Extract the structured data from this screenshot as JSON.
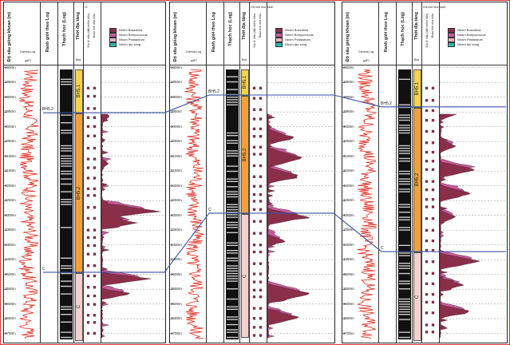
{
  "headers": {
    "depth": "Độ sâu giếng khoan (m)",
    "log_boundary": "Ranh giới theo Log",
    "lithology": "Thạch học (Log)",
    "age": "Thời địa tầng",
    "gamma": "Gamma Log",
    "gamma_unit": "gAPI",
    "notes_small": "Cf",
    "notes_row1": "Giá trị mẫu (đất nhiễm bẩn)",
    "notes_row2": "Đoạn tính như mẫu",
    "bed": "Bed",
    "panel3_small": "Ghi chú hóa thạch"
  },
  "legend": [
    {
      "label": "Nhóm Bosedinia",
      "color": "#8b2e4a"
    },
    {
      "label": "Nhóm Botryococcus",
      "color": "#c45b9a"
    },
    {
      "label": "Nhóm Pediastrum",
      "color": "#e8b0c0"
    },
    {
      "label": "Nhóm tảo sông",
      "color": "#2bb7a8"
    }
  ],
  "depth_ticks": [
    "2800m",
    "2850m",
    "2900m",
    "2950m",
    "3000m",
    "3050m",
    "3100m",
    "3150m",
    "3200m",
    "3250m",
    "3300m",
    "3350m",
    "3400m",
    "3450m",
    "3500m",
    "3550m",
    "3600m",
    "3650m",
    "3700m"
  ],
  "panels": [
    {
      "zones": [
        {
          "label": "BH5.1"
        },
        {
          "label": "BH5.2"
        },
        {
          "label": "C"
        }
      ],
      "boundaries": [
        "BH5.2",
        "C"
      ]
    },
    {
      "zones": [
        {
          "label": "BH5.1"
        },
        {
          "label": "BH5.2"
        },
        {
          "label": "C"
        }
      ],
      "boundaries": [
        "BH5.2",
        "C"
      ]
    },
    {
      "zones": [
        {
          "label": "BH5.1"
        },
        {
          "label": "BH5.2"
        },
        {
          "label": "C"
        }
      ],
      "boundaries": [
        "BH5.2",
        "C"
      ]
    }
  ],
  "colors": {
    "bh51": "#f7d24a",
    "bh52": "#f2a13a",
    "c": "#f7cfcf",
    "gamma": "#e02a1e",
    "corr": "#3a52a8"
  }
}
